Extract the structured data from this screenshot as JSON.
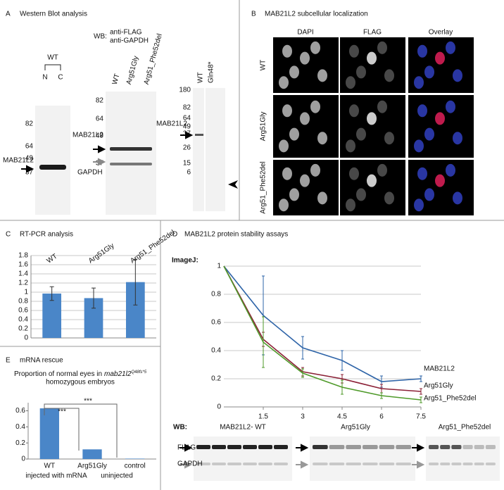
{
  "panels": {
    "A": {
      "letter": "A",
      "title": "Western Blot analysis",
      "wb_label": "WB:",
      "antibodies": [
        "anti-FLAG",
        "anti-GAPDH"
      ],
      "blot1": {
        "group": "WT",
        "lanes": [
          "N",
          "C"
        ],
        "markers": [
          "82",
          "64",
          "49",
          "37"
        ],
        "band": "MAB21L2"
      },
      "blot2": {
        "lanes": [
          "WT",
          "Arg51Gly",
          "Arg51_Phe52del"
        ],
        "markers": [
          "82",
          "64",
          "49",
          "37"
        ],
        "bands": [
          "MAB21L2",
          "GAPDH"
        ]
      },
      "blot3": {
        "lanes": [
          "WT",
          "Gln48*"
        ],
        "markers": [
          "180",
          "82",
          "64",
          "49",
          "37",
          "26",
          "15",
          "6"
        ],
        "band": "MAB21L2"
      }
    },
    "B": {
      "letter": "B",
      "title": "MAB21L2 subcellular localization",
      "columns": [
        "DAPI",
        "FLAG",
        "Overlay"
      ],
      "rows": [
        "WT",
        "Arg51Gly",
        "Arg51_Phe52del"
      ]
    },
    "C": {
      "letter": "C",
      "title": "RT-PCR analysis"
    },
    "D": {
      "letter": "D",
      "title": "MAB21L2 protein stability assays",
      "method": "ImageJ:",
      "wb_label": "WB:",
      "blots": [
        "MAB21L2- WT",
        "Arg51Gly",
        "Arg51_Phe52del"
      ],
      "bands": [
        "FLAG",
        "GAPDH"
      ]
    },
    "E": {
      "letter": "E",
      "title": "mRNA rescue",
      "subtitle": [
        "Proportion of normal eyes in",
        "mab21l2",
        "Q48fs*5",
        "homozygous embryos"
      ],
      "groups": [
        "injected with mRNA",
        "uninjected"
      ]
    }
  },
  "chart_data": [
    {
      "type": "bar",
      "categories": [
        "WT",
        "Arg51Gly",
        "Arg51_Phe52del"
      ],
      "values": [
        0.97,
        0.87,
        1.22
      ],
      "errors": [
        0.15,
        0.22,
        0.5
      ],
      "color": "#4a86c8",
      "ylim": [
        0,
        1.8
      ],
      "yticks": [
        0,
        0.2,
        0.4,
        0.6,
        0.8,
        1,
        1.2,
        1.4,
        1.6,
        1.8
      ],
      "grid": true
    },
    {
      "type": "line",
      "x": [
        0,
        1.5,
        3,
        4.5,
        6,
        7.5
      ],
      "xlim": [
        0,
        7.5
      ],
      "xticks": [
        1.5,
        3,
        4.5,
        6,
        7.5
      ],
      "ylim": [
        0,
        1
      ],
      "yticks": [
        0,
        0.2,
        0.4,
        0.6,
        0.8,
        1
      ],
      "grid": true,
      "series": [
        {
          "name": "MAB21L2",
          "color": "#2e64a8",
          "values": [
            1,
            0.65,
            0.42,
            0.33,
            0.18,
            0.2
          ],
          "errors": [
            0,
            0.28,
            0.08,
            0.07,
            0.04,
            0.02
          ]
        },
        {
          "name": "Arg51Gly",
          "color": "#8b2036",
          "values": [
            1,
            0.48,
            0.25,
            0.2,
            0.13,
            0.11
          ],
          "errors": [
            0,
            0.05,
            0.03,
            0.03,
            0.03,
            0.02
          ]
        },
        {
          "name": "Arg51_Phe52del",
          "color": "#4f9a2a",
          "values": [
            1,
            0.46,
            0.24,
            0.14,
            0.08,
            0.05
          ],
          "errors": [
            0,
            0.18,
            0.03,
            0.05,
            0.02,
            0.02
          ]
        }
      ]
    },
    {
      "type": "bar",
      "categories": [
        "WT",
        "Arg51Gly",
        "control"
      ],
      "values": [
        0.63,
        0.12,
        0.005
      ],
      "color": "#4a86c8",
      "ylim": [
        0,
        0.7
      ],
      "yticks": [
        0,
        0.2,
        0.4,
        0.6
      ],
      "grid": false,
      "annotations": [
        "***",
        "***"
      ]
    }
  ]
}
